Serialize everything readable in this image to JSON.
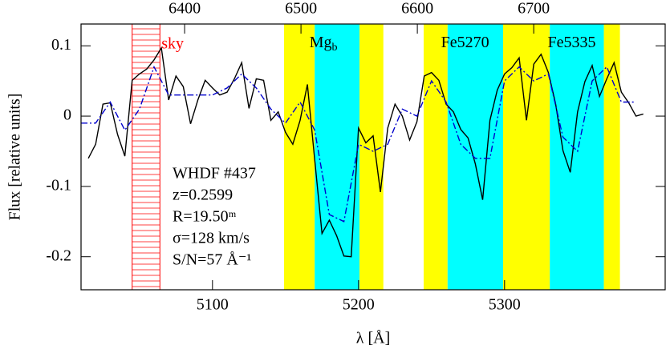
{
  "chart_data": {
    "type": "line",
    "xlabel": "λ [Å]",
    "ylabel": "Flux [relative units]",
    "xlim": [
      5010,
      5410
    ],
    "ylim": [
      -0.247,
      0.131
    ],
    "xticks": [
      5100,
      5200,
      5300
    ],
    "yticks": [
      -0.2,
      -0.1,
      0,
      0.1
    ],
    "x2lim": [
      6311,
      6813
    ],
    "x2ticks": [
      6400,
      6500,
      6600,
      6700
    ],
    "bands": [
      {
        "range": [
          5149,
          5170
        ],
        "color": "#ffff00"
      },
      {
        "range": [
          5170,
          5200.7
        ],
        "color": "#00ffff"
      },
      {
        "range": [
          5200.7,
          5217
        ],
        "color": "#ffff00"
      },
      {
        "range": [
          5244.6,
          5261
        ],
        "color": "#ffff00"
      },
      {
        "range": [
          5261,
          5299
        ],
        "color": "#00ffff"
      },
      {
        "range": [
          5299,
          5331
        ],
        "color": "#ffff00"
      },
      {
        "range": [
          5331,
          5368
        ],
        "color": "#00ffff"
      },
      {
        "range": [
          5368,
          5379
        ],
        "color": "#ffff00"
      }
    ],
    "sky": {
      "range": [
        5045,
        5064
      ],
      "label": "sky",
      "color": "#ff0000"
    },
    "annotations": [
      {
        "text": "Mg",
        "sub": "b",
        "x": 5176
      },
      {
        "text": "Fe5270",
        "x": 5273
      },
      {
        "text": "Fe5335",
        "x": 5346
      }
    ],
    "info": [
      "WHDF #437",
      "z=0.2599",
      "R=19.50ᵐ",
      "σ=128 km/s",
      "S/N=57 Å⁻¹"
    ],
    "series": [
      {
        "color": "#000000",
        "dash": "none",
        "x": [
          5015,
          5020,
          5025,
          5030,
          5035,
          5040,
          5045,
          5050,
          5055,
          5060,
          5065,
          5070,
          5075,
          5080,
          5085,
          5090,
          5095,
          5100,
          5105,
          5110,
          5115,
          5120,
          5125,
          5130,
          5135,
          5140,
          5145,
          5150,
          5155,
          5160,
          5165,
          5170,
          5175,
          5180,
          5185,
          5190,
          5195,
          5200,
          5205,
          5210,
          5215,
          5220,
          5225,
          5230,
          5235,
          5240,
          5245,
          5250,
          5255,
          5260,
          5265,
          5270,
          5275,
          5280,
          5285,
          5290,
          5295,
          5300,
          5305,
          5310,
          5315,
          5320,
          5325,
          5330,
          5335,
          5340,
          5345,
          5350,
          5355,
          5360,
          5365,
          5370,
          5375,
          5380,
          5385,
          5390,
          5395
        ],
        "values": [
          -0.06,
          -0.04,
          0.017,
          0.019,
          -0.026,
          -0.057,
          0.051,
          0.06,
          0.067,
          0.08,
          0.097,
          0.023,
          0.057,
          0.042,
          -0.011,
          0.023,
          0.051,
          0.04,
          0.03,
          0.034,
          0.053,
          0.076,
          0.011,
          0.053,
          0.051,
          -0.006,
          0.006,
          -0.023,
          -0.04,
          -0.006,
          0.045,
          -0.062,
          -0.167,
          -0.148,
          -0.17,
          -0.199,
          -0.2,
          -0.017,
          -0.038,
          -0.028,
          -0.108,
          -0.017,
          0.017,
          0,
          -0.034,
          -0.008,
          0.057,
          0.062,
          0.051,
          0.017,
          0.006,
          -0.019,
          -0.031,
          -0.068,
          -0.119,
          -0.006,
          0.037,
          0.06,
          0.069,
          0.083,
          -0.006,
          0.074,
          0.088,
          0.062,
          0.017,
          -0.049,
          -0.08,
          0.006,
          0.049,
          0.072,
          0.028,
          0.053,
          0.076,
          0.034,
          0.019,
          0,
          0.003
        ]
      },
      {
        "color": "#0000cc",
        "dash": "8 3 2 3",
        "x": [
          5010,
          5020,
          5030,
          5040,
          5050,
          5060,
          5070,
          5080,
          5090,
          5100,
          5110,
          5120,
          5130,
          5140,
          5150,
          5160,
          5170,
          5180,
          5190,
          5200,
          5210,
          5220,
          5230,
          5240,
          5250,
          5260,
          5270,
          5280,
          5290,
          5300,
          5310,
          5320,
          5330,
          5340,
          5350,
          5360,
          5370,
          5380,
          5390
        ],
        "values": [
          -0.01,
          -0.01,
          0.02,
          -0.02,
          0.01,
          0.07,
          0.03,
          0.03,
          0.03,
          0.03,
          0.04,
          0.06,
          0.04,
          0.01,
          -0.01,
          0.02,
          -0.02,
          -0.14,
          -0.15,
          -0.04,
          -0.05,
          -0.04,
          0.01,
          0,
          0.05,
          0.02,
          -0.04,
          -0.06,
          -0.06,
          0.05,
          0.07,
          0.05,
          0.06,
          -0.03,
          -0.05,
          0.05,
          0.07,
          0.02,
          0.02
        ]
      }
    ]
  }
}
